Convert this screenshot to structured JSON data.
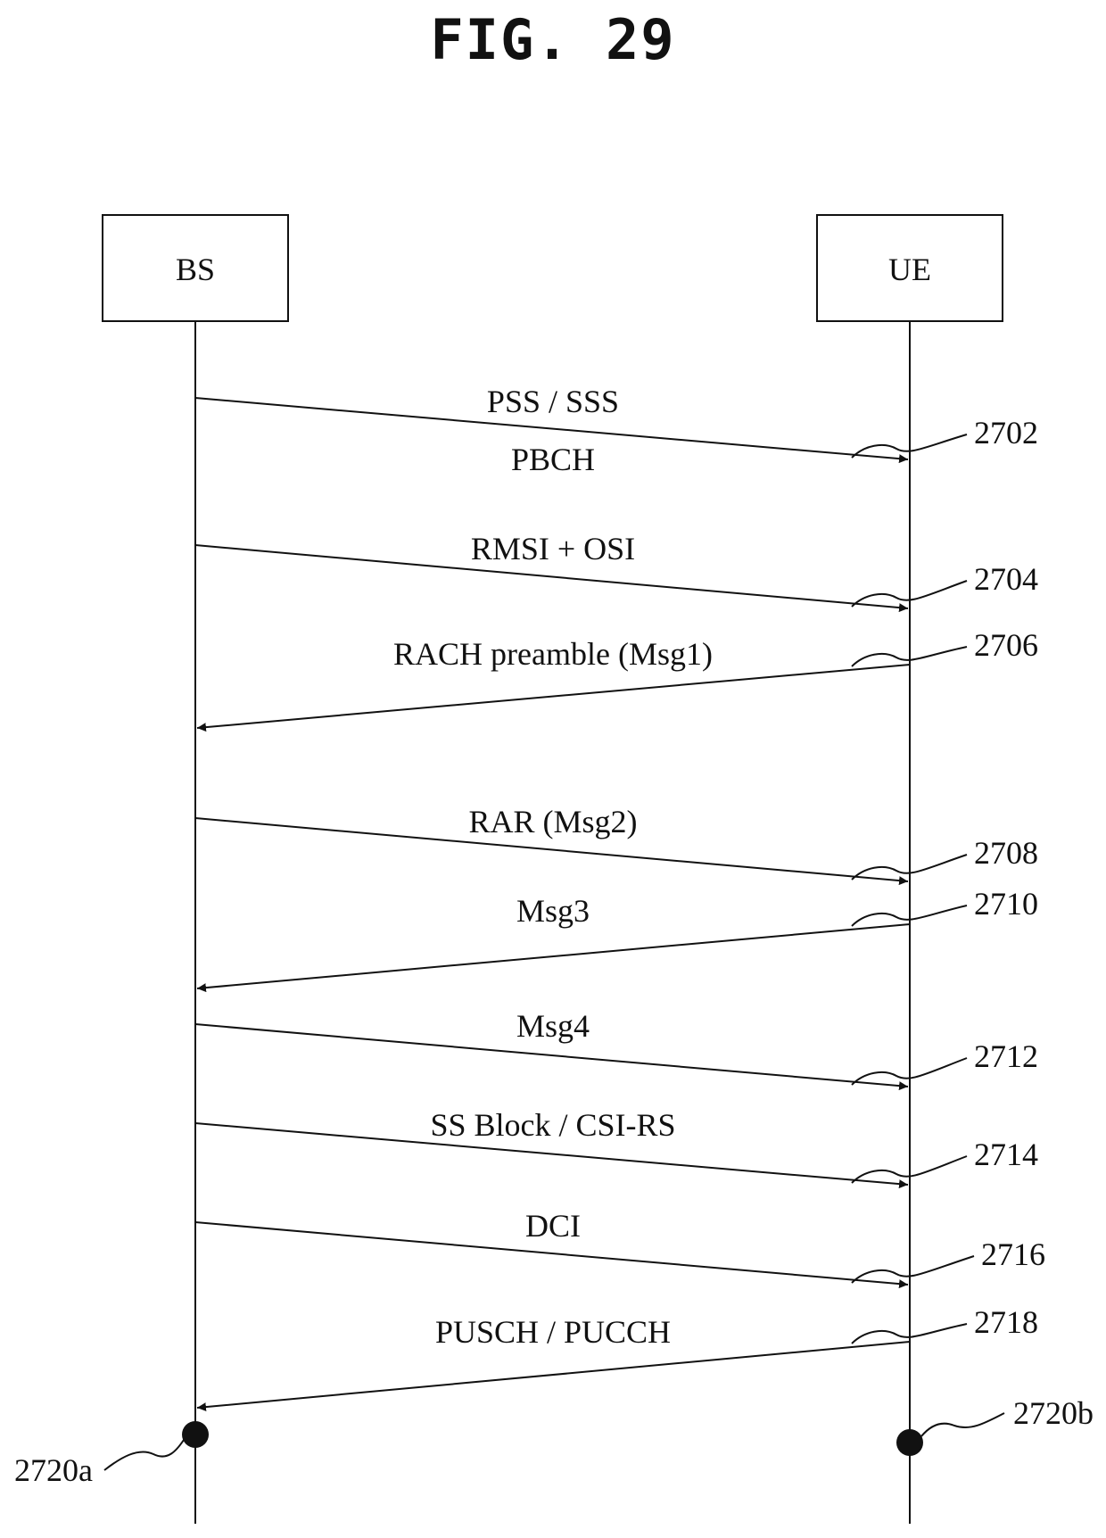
{
  "figure": {
    "title": "FIG. 29"
  },
  "entities": {
    "left": "BS",
    "right": "UE"
  },
  "messages": [
    {
      "id": "pss-sss",
      "label": "PSS / SSS",
      "label2": "PBCH",
      "direction": "to_ue",
      "ref": "2702"
    },
    {
      "id": "rmsi-osi",
      "label": "RMSI + OSI",
      "direction": "to_ue",
      "ref": "2704"
    },
    {
      "id": "rach-preamble",
      "label": "RACH preamble (Msg1)",
      "direction": "to_bs",
      "ref": "2706"
    },
    {
      "id": "rar",
      "label": "RAR (Msg2)",
      "direction": "to_ue",
      "ref": "2708"
    },
    {
      "id": "msg3",
      "label": "Msg3",
      "direction": "to_bs",
      "ref": "2710"
    },
    {
      "id": "msg4",
      "label": "Msg4",
      "direction": "to_ue",
      "ref": "2712"
    },
    {
      "id": "ss-block-csi-rs",
      "label": "SS Block / CSI-RS",
      "direction": "to_ue",
      "ref": "2714"
    },
    {
      "id": "dci",
      "label": "DCI",
      "direction": "to_ue",
      "ref": "2716"
    },
    {
      "id": "pusch-pucch",
      "label": "PUSCH / PUCCH",
      "direction": "to_bs",
      "ref": "2718"
    }
  ],
  "endpoints": {
    "left_ref": "2720a",
    "right_ref": "2720b"
  }
}
